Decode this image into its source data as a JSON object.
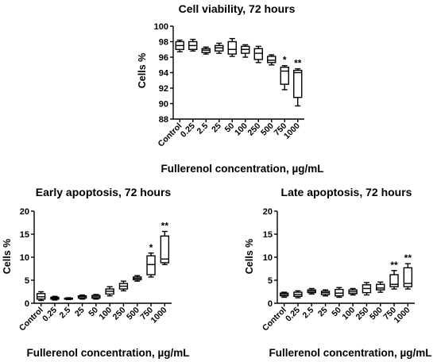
{
  "chart_data": [
    {
      "type": "boxplot",
      "title": "Cell viability, 72 hours",
      "xlabel": "Fullerenol concentration, µg/mL",
      "ylabel": "Cells %",
      "ylim": [
        88,
        100
      ],
      "yticks": [
        88,
        90,
        92,
        94,
        96,
        98,
        100
      ],
      "categories": [
        "Control",
        "0.25",
        "2.5",
        "25",
        "50",
        "100",
        "250",
        "500",
        "750",
        "1000"
      ],
      "boxes": [
        {
          "min": 96.7,
          "q1": 97.0,
          "median": 97.5,
          "q3": 98.0,
          "max": 98.2,
          "sig": ""
        },
        {
          "min": 96.8,
          "q1": 97.0,
          "median": 97.5,
          "q3": 98.0,
          "max": 98.3,
          "sig": ""
        },
        {
          "min": 96.4,
          "q1": 96.6,
          "median": 96.9,
          "q3": 97.1,
          "max": 97.3,
          "sig": ""
        },
        {
          "min": 96.5,
          "q1": 96.8,
          "median": 97.2,
          "q3": 97.5,
          "max": 97.8,
          "sig": ""
        },
        {
          "min": 96.1,
          "q1": 96.4,
          "median": 97.0,
          "q3": 98.0,
          "max": 98.4,
          "sig": ""
        },
        {
          "min": 96.0,
          "q1": 96.5,
          "median": 97.0,
          "q3": 97.4,
          "max": 97.6,
          "sig": ""
        },
        {
          "min": 95.3,
          "q1": 95.7,
          "median": 96.5,
          "q3": 97.1,
          "max": 97.4,
          "sig": ""
        },
        {
          "min": 95.0,
          "q1": 95.3,
          "median": 95.6,
          "q3": 96.1,
          "max": 96.3,
          "sig": ""
        },
        {
          "min": 91.8,
          "q1": 92.5,
          "median": 94.2,
          "q3": 94.7,
          "max": 94.9,
          "sig": "*"
        },
        {
          "min": 89.7,
          "q1": 90.8,
          "median": 94.0,
          "q3": 94.3,
          "max": 94.5,
          "sig": "**"
        }
      ]
    },
    {
      "type": "boxplot",
      "title": "Early apoptosis, 72 hours",
      "xlabel": "Fullerenol concentration, µg/mL",
      "ylabel": "Cells %",
      "ylim": [
        0,
        20
      ],
      "yticks": [
        0,
        5,
        10,
        15,
        20
      ],
      "categories": [
        "Control",
        "0.25",
        "2.5",
        "25",
        "50",
        "100",
        "250",
        "500",
        "750",
        "1000"
      ],
      "boxes": [
        {
          "min": 0.6,
          "q1": 0.9,
          "median": 1.4,
          "q3": 2.1,
          "max": 2.5,
          "sig": ""
        },
        {
          "min": 0.7,
          "q1": 0.9,
          "median": 1.1,
          "q3": 1.3,
          "max": 1.5,
          "sig": ""
        },
        {
          "min": 0.8,
          "q1": 0.9,
          "median": 1.0,
          "q3": 1.1,
          "max": 1.2,
          "sig": ""
        },
        {
          "min": 0.9,
          "q1": 1.1,
          "median": 1.4,
          "q3": 1.6,
          "max": 1.8,
          "sig": ""
        },
        {
          "min": 0.9,
          "q1": 1.1,
          "median": 1.4,
          "q3": 1.7,
          "max": 1.9,
          "sig": ""
        },
        {
          "min": 1.6,
          "q1": 2.0,
          "median": 2.6,
          "q3": 3.1,
          "max": 3.6,
          "sig": ""
        },
        {
          "min": 2.7,
          "q1": 3.1,
          "median": 3.7,
          "q3": 4.3,
          "max": 4.8,
          "sig": ""
        },
        {
          "min": 4.8,
          "q1": 5.1,
          "median": 5.4,
          "q3": 5.7,
          "max": 6.0,
          "sig": ""
        },
        {
          "min": 5.7,
          "q1": 6.2,
          "median": 8.4,
          "q3": 10.3,
          "max": 10.9,
          "sig": "*"
        },
        {
          "min": 8.4,
          "q1": 8.8,
          "median": 9.6,
          "q3": 14.6,
          "max": 15.6,
          "sig": "**"
        }
      ]
    },
    {
      "type": "boxplot",
      "title": "Late apoptosis, 72 hours",
      "xlabel": "Fullerenol concentration, µg/mL",
      "ylabel": "Cells %",
      "ylim": [
        0,
        20
      ],
      "yticks": [
        0,
        5,
        10,
        15,
        20
      ],
      "categories": [
        "Control",
        "0.25",
        "2.5",
        "25",
        "50",
        "100",
        "250",
        "500",
        "750",
        "1000"
      ],
      "boxes": [
        {
          "min": 1.3,
          "q1": 1.6,
          "median": 1.9,
          "q3": 2.2,
          "max": 2.4,
          "sig": ""
        },
        {
          "min": 1.2,
          "q1": 1.5,
          "median": 1.9,
          "q3": 2.4,
          "max": 2.7,
          "sig": ""
        },
        {
          "min": 2.0,
          "q1": 2.3,
          "median": 2.6,
          "q3": 2.9,
          "max": 3.2,
          "sig": ""
        },
        {
          "min": 1.6,
          "q1": 1.9,
          "median": 2.3,
          "q3": 2.6,
          "max": 2.9,
          "sig": ""
        },
        {
          "min": 1.3,
          "q1": 1.6,
          "median": 2.2,
          "q3": 3.0,
          "max": 3.4,
          "sig": ""
        },
        {
          "min": 1.8,
          "q1": 2.1,
          "median": 2.5,
          "q3": 2.9,
          "max": 3.2,
          "sig": ""
        },
        {
          "min": 1.8,
          "q1": 2.3,
          "median": 3.2,
          "q3": 4.0,
          "max": 4.5,
          "sig": ""
        },
        {
          "min": 2.4,
          "q1": 2.9,
          "median": 3.3,
          "q3": 4.1,
          "max": 4.6,
          "sig": ""
        },
        {
          "min": 3.1,
          "q1": 3.6,
          "median": 4.1,
          "q3": 6.2,
          "max": 7.1,
          "sig": "**"
        },
        {
          "min": 3.1,
          "q1": 3.6,
          "median": 4.3,
          "q3": 7.7,
          "max": 8.6,
          "sig": "**"
        }
      ]
    }
  ]
}
